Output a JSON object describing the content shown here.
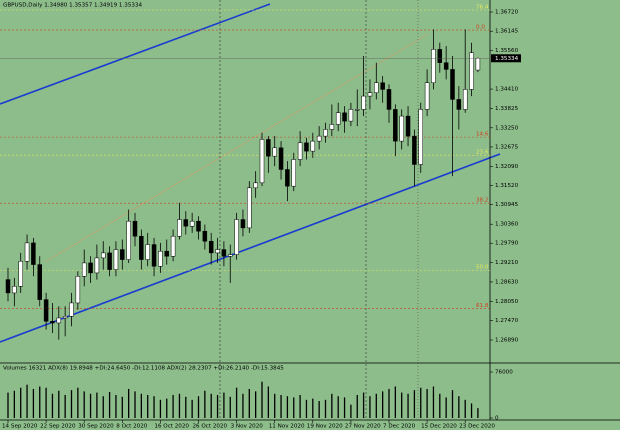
{
  "chart_data": {
    "type": "candlestick",
    "title": "GBPUSD,Daily  1.34980 1.35357 1.34919 1.35334",
    "categories": [
      "14 Sep 2020",
      null,
      null,
      null,
      null,
      null,
      "22 Sep 2020",
      null,
      null,
      null,
      null,
      null,
      "30 Sep 2020",
      null,
      null,
      null,
      null,
      null,
      "8 Oct 2020",
      null,
      null,
      null,
      null,
      null,
      "16 Oct 2020",
      null,
      null,
      null,
      null,
      null,
      "26 Oct 2020",
      null,
      null,
      null,
      null,
      null,
      "3 Nov 2020",
      null,
      null,
      null,
      null,
      null,
      "11 Nov 2020",
      null,
      null,
      null,
      null,
      null,
      "19 Nov 2020",
      null,
      null,
      null,
      null,
      null,
      "27 Nov 2020",
      null,
      null,
      null,
      null,
      null,
      "7 Dec 2020",
      null,
      null,
      null,
      null,
      null,
      "15 Dec 2020",
      null,
      null,
      null,
      null,
      null,
      "23 Dec 2020",
      null,
      null
    ],
    "open": [
      1.287,
      1.283,
      1.285,
      1.2925,
      1.298,
      1.2915,
      1.281,
      1.2745,
      1.274,
      1.2755,
      1.276,
      1.28,
      1.288,
      1.292,
      1.289,
      1.2935,
      1.295,
      1.29,
      1.296,
      1.293,
      1.3045,
      1.3,
      1.293,
      1.2975,
      1.291,
      1.2955,
      1.294,
      1.3,
      1.305,
      1.303,
      1.3045,
      1.3015,
      1.2985,
      1.295,
      1.296,
      1.294,
      1.2945,
      1.305,
      1.3025,
      1.3145,
      1.316,
      1.329,
      1.324,
      1.3265,
      1.32,
      1.315,
      1.323,
      1.328,
      1.3255,
      1.3285,
      1.33,
      1.332,
      1.3335,
      1.337,
      1.3345,
      1.338,
      1.338,
      1.342,
      1.343,
      1.346,
      1.344,
      1.338,
      1.3285,
      1.336,
      1.33,
      1.3215,
      1.338,
      1.346,
      1.356,
      1.352,
      1.35,
      1.341,
      1.338,
      1.344,
      1.3498
    ],
    "high": [
      1.2905,
      1.2875,
      1.295,
      1.3005,
      1.2995,
      1.294,
      1.283,
      1.28,
      1.279,
      1.279,
      1.283,
      1.2895,
      1.296,
      1.294,
      1.2975,
      1.2985,
      1.297,
      1.2985,
      1.299,
      1.308,
      1.307,
      1.302,
      1.301,
      1.2995,
      1.298,
      1.299,
      1.302,
      1.31,
      1.3075,
      1.307,
      1.306,
      1.3035,
      1.301,
      1.2995,
      1.2985,
      1.2975,
      1.307,
      1.308,
      1.3165,
      1.3195,
      1.331,
      1.33,
      1.33,
      1.3285,
      1.3225,
      1.325,
      1.3315,
      1.3295,
      1.331,
      1.333,
      1.334,
      1.3395,
      1.34,
      1.339,
      1.34,
      1.344,
      1.354,
      1.347,
      1.352,
      1.348,
      1.3455,
      1.3395,
      1.338,
      1.339,
      1.332,
      1.34,
      1.35,
      1.362,
      1.358,
      1.357,
      1.354,
      1.345,
      1.362,
      1.358,
      1.35357
    ],
    "low": [
      1.2805,
      1.279,
      1.283,
      1.29,
      1.288,
      1.279,
      1.272,
      1.271,
      1.269,
      1.27,
      1.273,
      1.278,
      1.285,
      1.286,
      1.287,
      1.29,
      1.288,
      1.288,
      1.29,
      1.292,
      1.297,
      1.29,
      1.291,
      1.288,
      1.289,
      1.2915,
      1.2925,
      1.299,
      1.3005,
      1.301,
      1.299,
      1.296,
      1.2915,
      1.292,
      1.291,
      1.286,
      1.293,
      1.3,
      1.301,
      1.3115,
      1.315,
      1.319,
      1.321,
      1.317,
      1.3105,
      1.3135,
      1.321,
      1.323,
      1.3235,
      1.326,
      1.328,
      1.33,
      1.3315,
      1.331,
      1.333,
      1.333,
      1.336,
      1.338,
      1.341,
      1.34,
      1.334,
      1.324,
      1.326,
      1.327,
      1.315,
      1.319,
      1.336,
      1.344,
      1.349,
      1.347,
      1.318,
      1.332,
      1.337,
      1.342,
      1.34919
    ],
    "close": [
      1.283,
      1.285,
      1.2925,
      1.298,
      1.2915,
      1.281,
      1.2745,
      1.274,
      1.2755,
      1.276,
      1.28,
      1.288,
      1.292,
      1.289,
      1.2935,
      1.295,
      1.29,
      1.296,
      1.293,
      1.3045,
      1.3,
      1.293,
      1.2975,
      1.291,
      1.2955,
      1.294,
      1.3,
      1.305,
      1.303,
      1.3045,
      1.3015,
      1.2985,
      1.295,
      1.296,
      1.294,
      1.2945,
      1.305,
      1.3025,
      1.3145,
      1.316,
      1.329,
      1.324,
      1.3265,
      1.32,
      1.315,
      1.323,
      1.328,
      1.3255,
      1.3285,
      1.33,
      1.332,
      1.3335,
      1.337,
      1.3345,
      1.338,
      1.338,
      1.342,
      1.343,
      1.346,
      1.344,
      1.338,
      1.3285,
      1.336,
      1.33,
      1.3215,
      1.338,
      1.346,
      1.356,
      1.352,
      1.35,
      1.341,
      1.338,
      1.344,
      1.355,
      1.35334
    ],
    "ylim": [
      1.2623,
      1.3708
    ],
    "yticks": [
      {
        "value": 1.2689,
        "label": "1.26890"
      },
      {
        "value": 1.2747,
        "label": "1.27470"
      },
      {
        "value": 1.2805,
        "label": "1.28050"
      },
      {
        "value": 1.2863,
        "label": "1.28630"
      },
      {
        "value": 1.2921,
        "label": "1.29210"
      },
      {
        "value": 1.2979,
        "label": "1.29790"
      },
      {
        "value": 1.3036,
        "label": "1.30360"
      },
      {
        "value": 1.30945,
        "label": "1.30945"
      },
      {
        "value": 1.3152,
        "label": "1.31520"
      },
      {
        "value": 1.3209,
        "label": "1.32090"
      },
      {
        "value": 1.32675,
        "label": "1.32675"
      },
      {
        "value": 1.3325,
        "label": "1.33250"
      },
      {
        "value": 1.33825,
        "label": "1.33825"
      },
      {
        "value": 1.3441,
        "label": "1.34410"
      },
      {
        "value": 1.3556,
        "label": "1.35560"
      },
      {
        "value": 1.36145,
        "label": "1.36145"
      },
      {
        "value": 1.3672,
        "label": "1.36720"
      }
    ],
    "current_price": {
      "value": 1.35334,
      "label": "1.35334"
    },
    "levels": [
      {
        "value": 1.3678,
        "label": "76.4",
        "color": "#e8e860"
      },
      {
        "value": 1.3618,
        "label": "0.0",
        "color": "#d04020"
      },
      {
        "value": 1.3297,
        "label": "14.6",
        "color": "#d04020"
      },
      {
        "value": 1.3243,
        "label": "23.6",
        "color": "#e8e860"
      },
      {
        "value": 1.3099,
        "label": "38.2",
        "color": "#d04020"
      },
      {
        "value": 1.2898,
        "label": "50.0",
        "color": "#e8e860"
      },
      {
        "value": 1.2784,
        "label": "61.8",
        "color": "#d04020"
      }
    ],
    "up_color": "#ffffff",
    "down_color": "#000000",
    "volume": {
      "label": "Volumes 16321  ADX(8) 19.8948 +DI:24.6450 -DI:12.1108  ADX(2) 28.2307 +DI:26.2140 -DI:15.3845",
      "color": "#000000",
      "values": [
        42000,
        45000,
        50000,
        55000,
        48000,
        52000,
        50000,
        40000,
        45000,
        38000,
        46000,
        50000,
        44000,
        40000,
        42000,
        36000,
        43000,
        38000,
        35000,
        48000,
        44000,
        40000,
        38000,
        36000,
        30000,
        32000,
        38000,
        40000,
        35000,
        30000,
        36000,
        45000,
        40000,
        38000,
        42000,
        35000,
        50000,
        40000,
        48000,
        44000,
        60000,
        52000,
        40000,
        38000,
        36000,
        34000,
        38000,
        30000,
        32000,
        28000,
        30000,
        40000,
        36000,
        34000,
        22000,
        38000,
        42000,
        36000,
        40000,
        44000,
        48000,
        52000,
        42000,
        40000,
        46000,
        50000,
        48000,
        52000,
        40000,
        34000,
        46000,
        36000,
        30000,
        24000,
        16321
      ],
      "ylim": [
        0,
        76000
      ],
      "yticks": [
        0,
        76000
      ]
    }
  }
}
